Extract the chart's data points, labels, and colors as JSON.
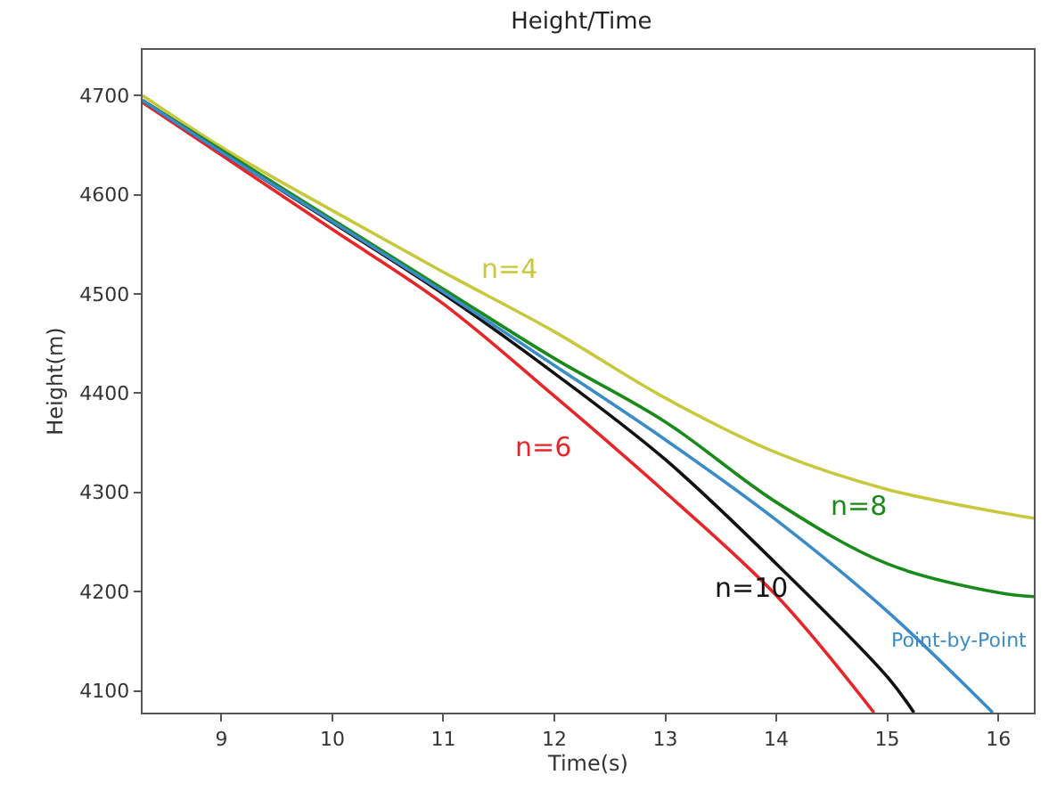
{
  "chart_data": {
    "type": "line",
    "title": "Height/Time",
    "xlabel": "Time(s)",
    "ylabel": "Height(m)",
    "xlim": [
      8.29,
      16.32
    ],
    "ylim": [
      4078,
      4746
    ],
    "xticks": [
      9,
      10,
      11,
      12,
      13,
      14,
      15,
      16
    ],
    "yticks": [
      4100,
      4200,
      4300,
      4400,
      4500,
      4600,
      4700
    ],
    "legend": false,
    "marker": "none",
    "line_style": "solid",
    "series": [
      {
        "name": "n=4",
        "color": "#c8c83c",
        "x": [
          8.29,
          9,
          10,
          11,
          12,
          13,
          14,
          15,
          16,
          16.32
        ],
        "values": [
          4700,
          4648,
          4584,
          4522,
          4462,
          4395,
          4340,
          4303,
          4280,
          4274
        ]
      },
      {
        "name": "n=6",
        "color": "#e8262a",
        "x": [
          8.29,
          9,
          10,
          11,
          12,
          13,
          14,
          14.88
        ],
        "values": [
          4693,
          4640,
          4565,
          4490,
          4397,
          4300,
          4196,
          4078
        ]
      },
      {
        "name": "n=8",
        "color": "#1a8a1a",
        "x": [
          8.29,
          9,
          10,
          11,
          12,
          13,
          14,
          15,
          16,
          16.32
        ],
        "values": [
          4695,
          4645,
          4575,
          4505,
          4435,
          4371,
          4290,
          4228,
          4199,
          4195
        ]
      },
      {
        "name": "n=10",
        "color": "#111111",
        "x": [
          8.29,
          9,
          10,
          11,
          12,
          13,
          14,
          15,
          15.24
        ],
        "values": [
          4695,
          4643,
          4572,
          4500,
          4420,
          4333,
          4228,
          4114,
          4078
        ]
      },
      {
        "name": "Point-by-Point",
        "color": "#3a8cc8",
        "x": [
          8.29,
          9,
          10,
          11,
          12,
          13,
          14,
          15,
          15.95
        ],
        "values": [
          4695,
          4643,
          4573,
          4502,
          4428,
          4353,
          4272,
          4180,
          4078
        ]
      }
    ]
  }
}
